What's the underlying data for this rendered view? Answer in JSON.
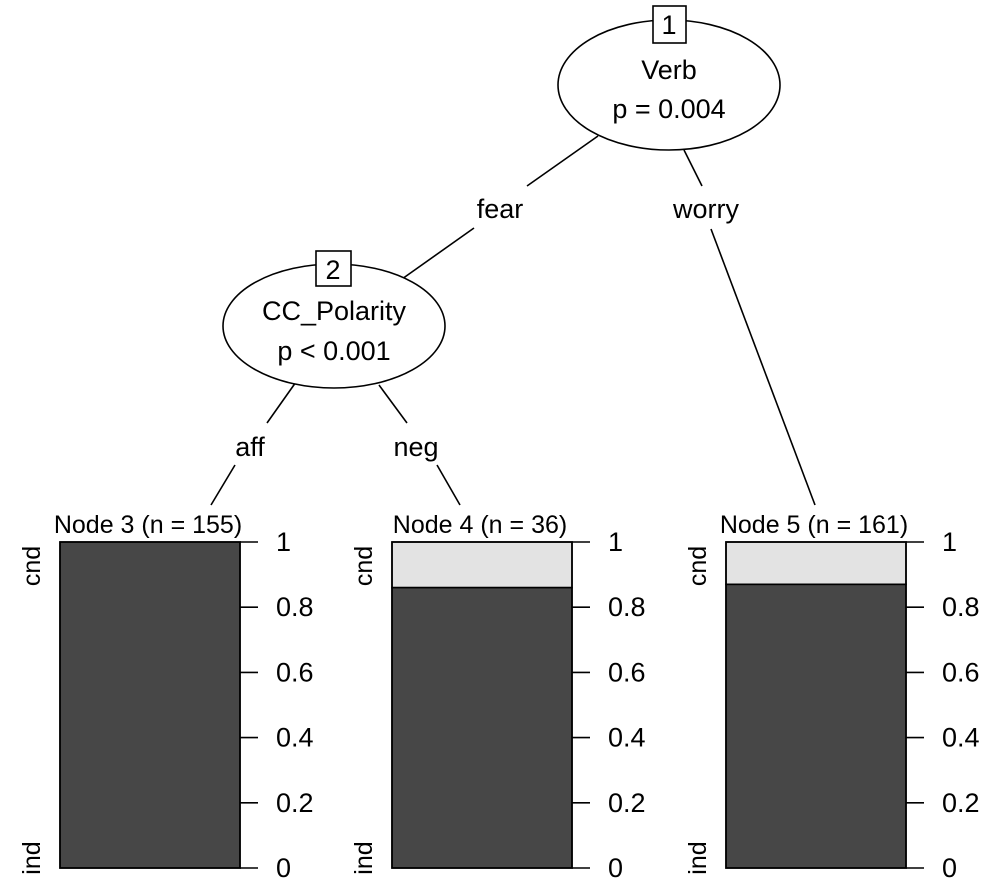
{
  "tree": {
    "inner_nodes": [
      {
        "id": "1",
        "variable": "Verb",
        "p_text": "p = 0.004"
      },
      {
        "id": "2",
        "variable": "CC_Polarity",
        "p_text": "p < 0.001"
      }
    ],
    "edges": [
      {
        "from": "1",
        "to": "2",
        "label": "fear"
      },
      {
        "from": "1",
        "to": "5",
        "label": "worry"
      },
      {
        "from": "2",
        "to": "3",
        "label": "aff"
      },
      {
        "from": "2",
        "to": "4",
        "label": "neg"
      }
    ]
  },
  "chart_data": [
    {
      "type": "bar",
      "title": "Node 3 (n = 155)",
      "categories": [
        "ind",
        "cnd"
      ],
      "stacked_proportions": {
        "ind": 1.0,
        "cnd": 0.0
      },
      "ylim": [
        0,
        1
      ],
      "yticks": [
        "0",
        "0.2",
        "0.4",
        "0.6",
        "0.8",
        "1"
      ],
      "colors": {
        "ind": "#474747",
        "cnd": "#e3e3e3"
      }
    },
    {
      "type": "bar",
      "title": "Node 4 (n = 36)",
      "categories": [
        "ind",
        "cnd"
      ],
      "stacked_proportions": {
        "ind": 0.86,
        "cnd": 0.14
      },
      "ylim": [
        0,
        1
      ],
      "yticks": [
        "0",
        "0.2",
        "0.4",
        "0.6",
        "0.8",
        "1"
      ],
      "colors": {
        "ind": "#474747",
        "cnd": "#e3e3e3"
      }
    },
    {
      "type": "bar",
      "title": "Node 5 (n = 161)",
      "categories": [
        "ind",
        "cnd"
      ],
      "stacked_proportions": {
        "ind": 0.87,
        "cnd": 0.13
      },
      "ylim": [
        0,
        1
      ],
      "yticks": [
        "0",
        "0.2",
        "0.4",
        "0.6",
        "0.8",
        "1"
      ],
      "colors": {
        "ind": "#474747",
        "cnd": "#e3e3e3"
      }
    }
  ]
}
